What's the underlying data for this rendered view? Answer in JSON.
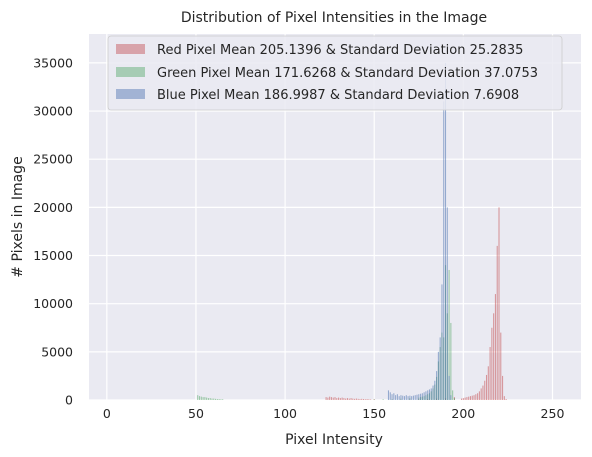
{
  "chart_data": {
    "type": "bar",
    "title": "Distribution of Pixel Intensities in the Image",
    "xlabel": "Pixel Intensity",
    "ylabel": "# Pixels in Image",
    "xlim": [
      -10,
      266
    ],
    "ylim": [
      0,
      38000
    ],
    "xticks": [
      0,
      50,
      100,
      150,
      200,
      250
    ],
    "yticks": [
      0,
      5000,
      10000,
      15000,
      20000,
      25000,
      30000,
      35000
    ],
    "grid": true,
    "legend_position": "top",
    "series": [
      {
        "name": "Red Pixel Mean 205.1396 & Standard Deviation 25.2835",
        "color": "#c44e52",
        "bins": [
          [
            123,
            300
          ],
          [
            124,
            250
          ],
          [
            125,
            350
          ],
          [
            126,
            300
          ],
          [
            127,
            250
          ],
          [
            128,
            300
          ],
          [
            129,
            200
          ],
          [
            130,
            250
          ],
          [
            131,
            200
          ],
          [
            132,
            250
          ],
          [
            133,
            200
          ],
          [
            134,
            150
          ],
          [
            135,
            200
          ],
          [
            136,
            150
          ],
          [
            137,
            200
          ],
          [
            138,
            150
          ],
          [
            139,
            120
          ],
          [
            140,
            150
          ],
          [
            141,
            120
          ],
          [
            142,
            100
          ],
          [
            143,
            120
          ],
          [
            144,
            100
          ],
          [
            145,
            80
          ],
          [
            146,
            100
          ],
          [
            147,
            80
          ],
          [
            148,
            60
          ],
          [
            150,
            80
          ],
          [
            160,
            50
          ],
          [
            165,
            60
          ],
          [
            170,
            60
          ],
          [
            175,
            80
          ],
          [
            180,
            100
          ],
          [
            185,
            150
          ],
          [
            190,
            200
          ],
          [
            195,
            300
          ],
          [
            199,
            150
          ],
          [
            200,
            200
          ],
          [
            201,
            250
          ],
          [
            202,
            300
          ],
          [
            203,
            350
          ],
          [
            204,
            400
          ],
          [
            205,
            450
          ],
          [
            206,
            500
          ],
          [
            207,
            600
          ],
          [
            208,
            700
          ],
          [
            209,
            900
          ],
          [
            210,
            1200
          ],
          [
            211,
            1500
          ],
          [
            212,
            2000
          ],
          [
            213,
            2600
          ],
          [
            214,
            3500
          ],
          [
            215,
            5500
          ],
          [
            216,
            7500
          ],
          [
            217,
            9000
          ],
          [
            218,
            11000
          ],
          [
            219,
            16000
          ],
          [
            220,
            20000
          ],
          [
            221,
            7000
          ],
          [
            222,
            2500
          ],
          [
            223,
            400
          ],
          [
            224,
            100
          ]
        ]
      },
      {
        "name": "Green Pixel Mean 171.6268 & Standard Deviation 37.0753",
        "color": "#55a868",
        "bins": [
          [
            51,
            500
          ],
          [
            52,
            400
          ],
          [
            53,
            350
          ],
          [
            54,
            300
          ],
          [
            55,
            300
          ],
          [
            56,
            250
          ],
          [
            57,
            200
          ],
          [
            58,
            200
          ],
          [
            59,
            150
          ],
          [
            60,
            150
          ],
          [
            61,
            120
          ],
          [
            62,
            100
          ],
          [
            63,
            100
          ],
          [
            64,
            80
          ],
          [
            65,
            80
          ],
          [
            150,
            60
          ],
          [
            155,
            80
          ],
          [
            160,
            100
          ],
          [
            165,
            150
          ],
          [
            170,
            200
          ],
          [
            175,
            250
          ],
          [
            176,
            300
          ],
          [
            177,
            350
          ],
          [
            178,
            400
          ],
          [
            179,
            500
          ],
          [
            180,
            600
          ],
          [
            181,
            700
          ],
          [
            182,
            900
          ],
          [
            183,
            1200
          ],
          [
            184,
            1600
          ],
          [
            185,
            2400
          ],
          [
            186,
            4000
          ],
          [
            187,
            5500
          ],
          [
            188,
            7000
          ],
          [
            189,
            6500
          ],
          [
            190,
            14000
          ],
          [
            191,
            9000
          ],
          [
            192,
            13500
          ],
          [
            193,
            8000
          ],
          [
            194,
            1000
          ],
          [
            195,
            200
          ]
        ]
      },
      {
        "name": "Blue Pixel Mean 186.9987 & Standard Deviation 7.6908",
        "color": "#4c72b0",
        "bins": [
          [
            158,
            1000
          ],
          [
            159,
            800
          ],
          [
            160,
            600
          ],
          [
            161,
            700
          ],
          [
            162,
            500
          ],
          [
            163,
            600
          ],
          [
            164,
            400
          ],
          [
            165,
            500
          ],
          [
            166,
            450
          ],
          [
            167,
            400
          ],
          [
            168,
            500
          ],
          [
            169,
            400
          ],
          [
            170,
            450
          ],
          [
            171,
            400
          ],
          [
            172,
            450
          ],
          [
            173,
            500
          ],
          [
            174,
            550
          ],
          [
            175,
            600
          ],
          [
            176,
            650
          ],
          [
            177,
            700
          ],
          [
            178,
            800
          ],
          [
            179,
            900
          ],
          [
            180,
            1000
          ],
          [
            181,
            1100
          ],
          [
            182,
            1200
          ],
          [
            183,
            1500
          ],
          [
            184,
            2000
          ],
          [
            185,
            3000
          ],
          [
            186,
            5000
          ],
          [
            187,
            6500
          ],
          [
            188,
            12000
          ],
          [
            189,
            31000
          ],
          [
            190,
            35000
          ],
          [
            191,
            20000
          ],
          [
            192,
            2500
          ],
          [
            193,
            500
          ]
        ]
      }
    ]
  }
}
